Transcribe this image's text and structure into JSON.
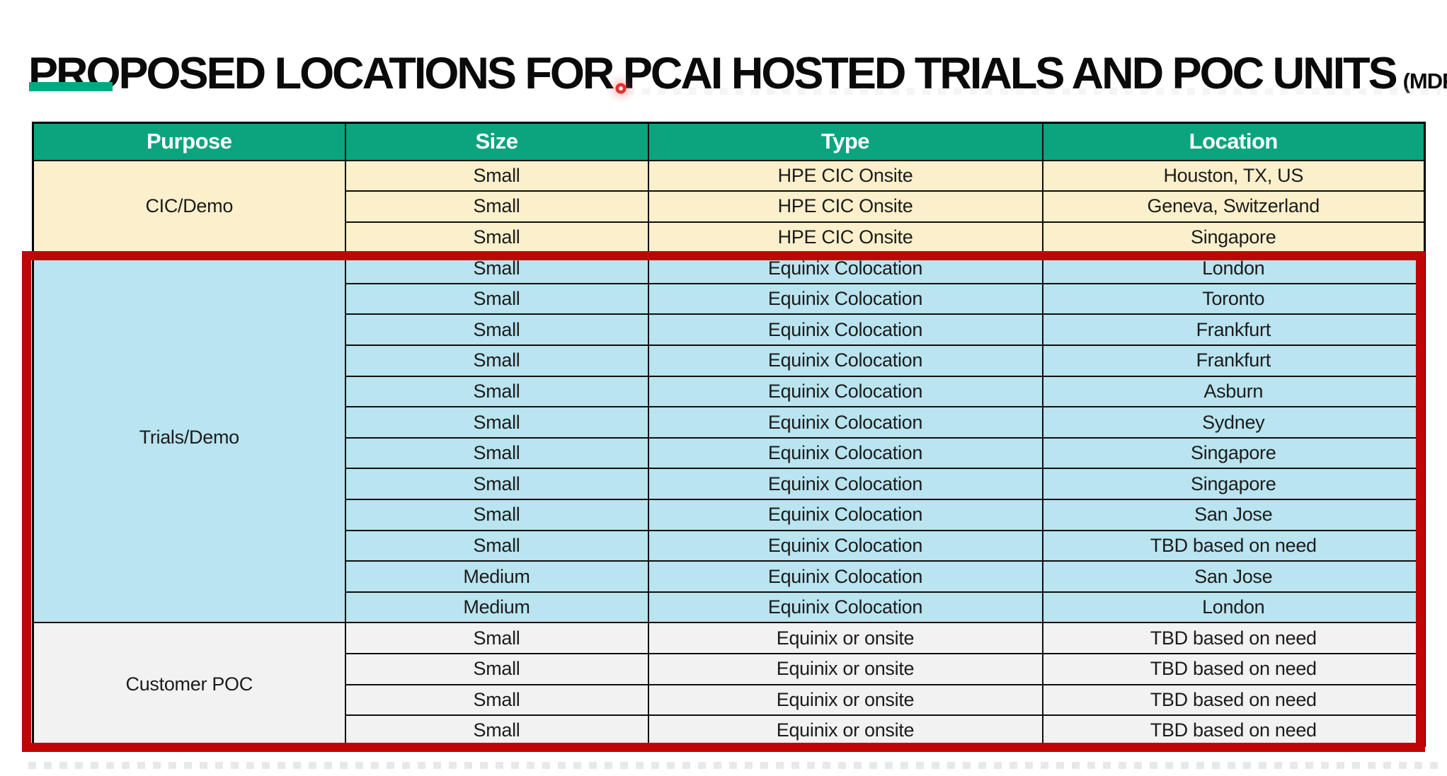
{
  "header": {
    "title": "PROPOSED LOCATIONS FOR PCAI HOSTED TRIALS AND POC UNITS",
    "suffix": "(MDF APPROVED)"
  },
  "colors": {
    "header_green": "#0BA47E",
    "accent_green": "#01A982",
    "red_box": "#C00505",
    "laser_red": "#E13030",
    "cic_row_bg": "#FBF0CB",
    "trials_row_bg": "#B9E4F0",
    "poc_row_bg": "#F2F2F2"
  },
  "table": {
    "columns": [
      "Purpose",
      "Size",
      "Type",
      "Location"
    ],
    "sections": [
      {
        "purpose": "CIC/Demo",
        "bg": "#FBF0CB",
        "rows": [
          [
            "Small",
            "HPE CIC Onsite",
            "Houston, TX, US"
          ],
          [
            "Small",
            "HPE CIC Onsite",
            "Geneva, Switzerland"
          ],
          [
            "Small",
            "HPE CIC Onsite",
            "Singapore"
          ]
        ]
      },
      {
        "purpose": "Trials/Demo",
        "bg": "#B9E4F0",
        "rows": [
          [
            "Small",
            "Equinix Colocation",
            "London"
          ],
          [
            "Small",
            "Equinix Colocation",
            "Toronto"
          ],
          [
            "Small",
            "Equinix Colocation",
            "Frankfurt"
          ],
          [
            "Small",
            "Equinix Colocation",
            "Frankfurt"
          ],
          [
            "Small",
            "Equinix Colocation",
            "Asburn"
          ],
          [
            "Small",
            "Equinix Colocation",
            "Sydney"
          ],
          [
            "Small",
            "Equinix Colocation",
            "Singapore"
          ],
          [
            "Small",
            "Equinix Colocation",
            "Singapore"
          ],
          [
            "Small",
            "Equinix Colocation",
            "San Jose"
          ],
          [
            "Small",
            "Equinix Colocation",
            "TBD based on need"
          ],
          [
            "Medium",
            "Equinix Colocation",
            "San Jose"
          ],
          [
            "Medium",
            "Equinix Colocation",
            "London"
          ]
        ]
      },
      {
        "purpose": "Customer POC",
        "bg": "#F2F2F2",
        "rows": [
          [
            "Small",
            "Equinix or onsite",
            "TBD based on need"
          ],
          [
            "Small",
            "Equinix or onsite",
            "TBD based on need"
          ],
          [
            "Small",
            "Equinix or onsite",
            "TBD based on need"
          ],
          [
            "Small",
            "Equinix or onsite",
            "TBD based on need"
          ]
        ]
      }
    ]
  }
}
